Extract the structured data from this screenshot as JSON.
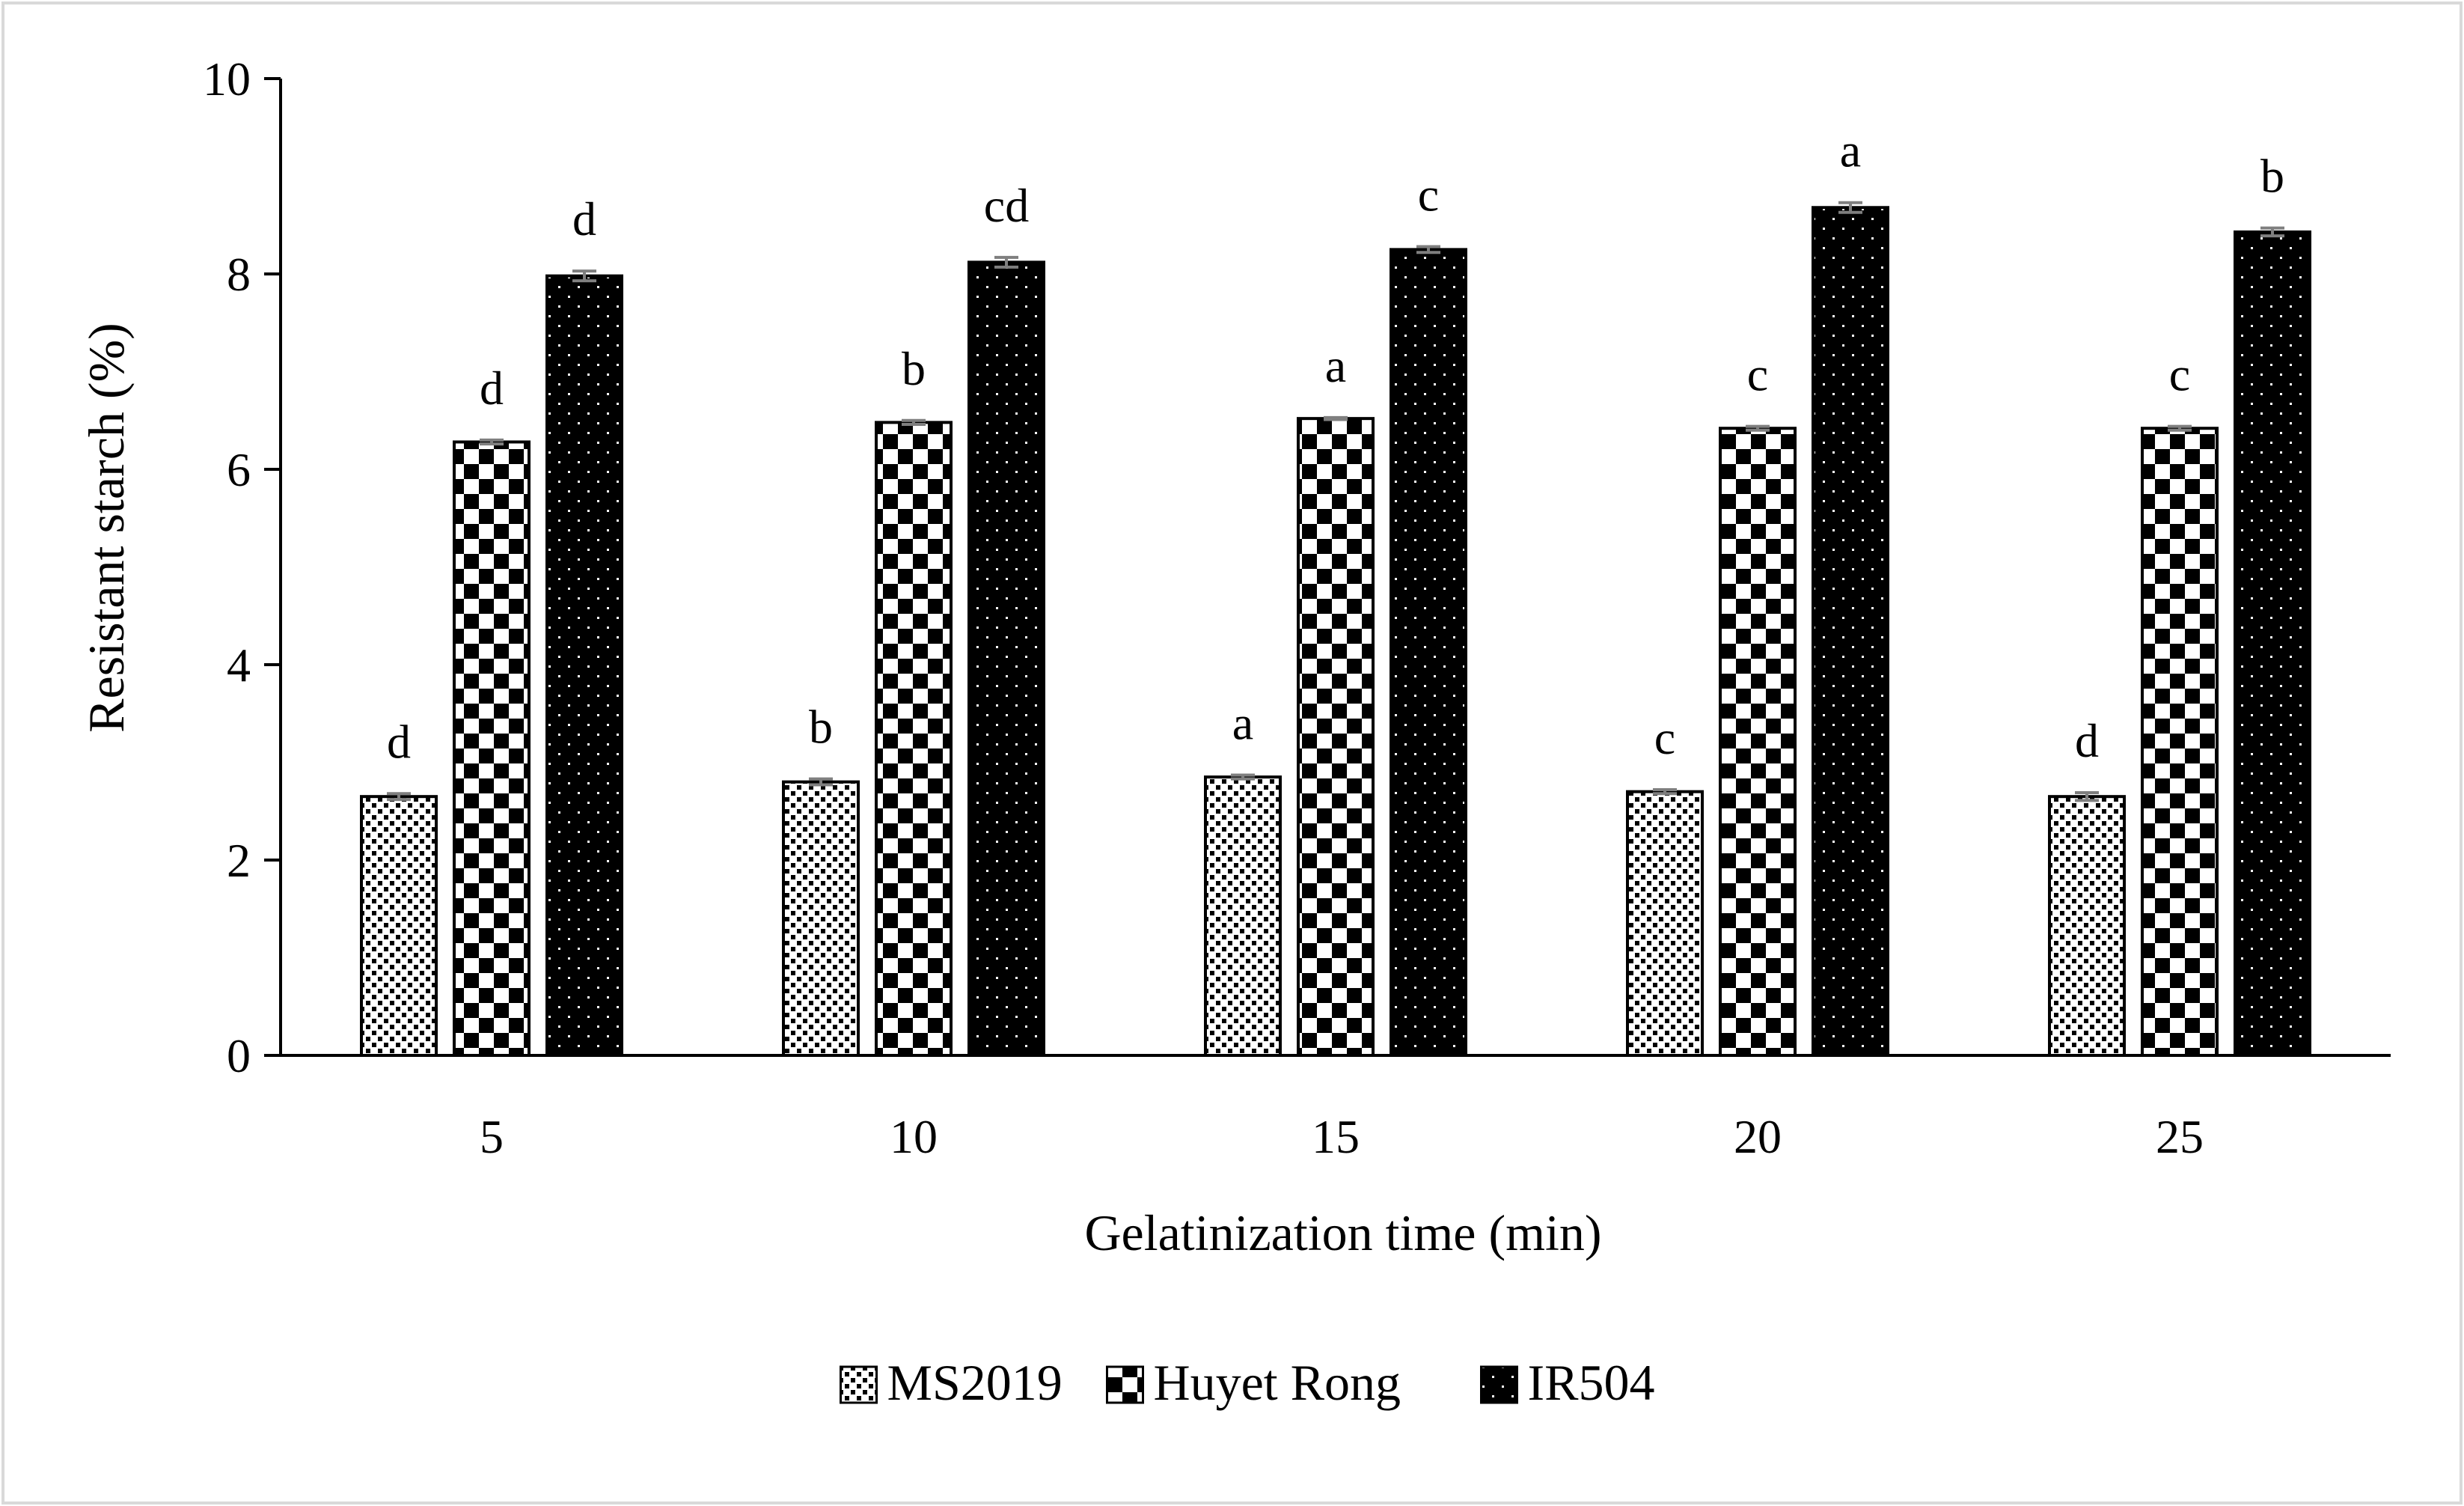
{
  "chart_data": {
    "type": "bar",
    "title": "",
    "xlabel": "Gelatinization time (min)",
    "ylabel": "Resistant starch (%)",
    "ylim": [
      0,
      10
    ],
    "yticks": [
      0,
      2,
      4,
      6,
      8,
      10
    ],
    "grid": false,
    "legend_position": "bottom",
    "categories": [
      "5",
      "10",
      "15",
      "20",
      "25"
    ],
    "series": [
      {
        "name": "MS2019",
        "pattern": "dots",
        "values": [
          2.65,
          2.8,
          2.85,
          2.7,
          2.65
        ],
        "errors": [
          0.03,
          0.03,
          0.02,
          0.02,
          0.04
        ],
        "letters": [
          "d",
          "b",
          "a",
          "c",
          "d"
        ]
      },
      {
        "name": "Huyet Rong",
        "pattern": "checker",
        "values": [
          6.28,
          6.48,
          6.52,
          6.42,
          6.42
        ],
        "errors": [
          0.02,
          0.02,
          0.01,
          0.02,
          0.02
        ],
        "letters": [
          "d",
          "b",
          "a",
          "c",
          "c"
        ]
      },
      {
        "name": "IR504",
        "pattern": "dark-dots",
        "values": [
          7.98,
          8.12,
          8.25,
          8.68,
          8.43
        ],
        "errors": [
          0.05,
          0.05,
          0.03,
          0.05,
          0.04
        ],
        "letters": [
          "d",
          "cd",
          "c",
          "a",
          "b"
        ]
      }
    ]
  },
  "colors": {
    "ink": "#000000",
    "error_bar": "#7f7f7f",
    "frame": "#d9d9d9",
    "background": "#ffffff"
  }
}
